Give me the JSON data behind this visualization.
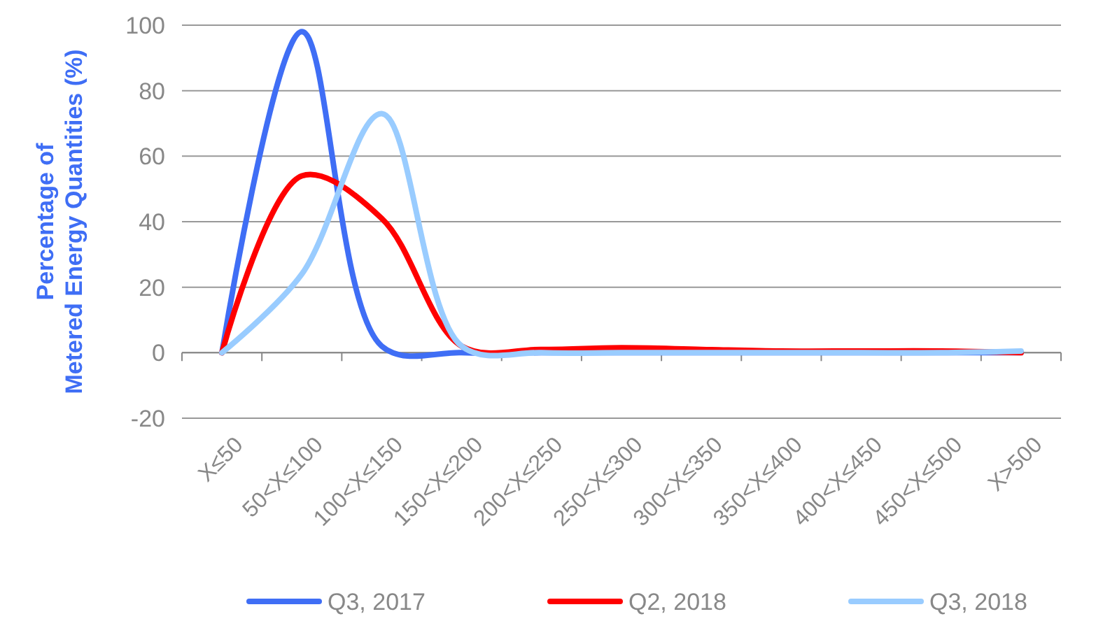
{
  "chart_data": {
    "type": "line",
    "ylabel": "Percentage of Metered Energy Quantities (%)",
    "categories": [
      "X≤50",
      "50<X≤100",
      "100<X≤150",
      "150<X≤200",
      "200<X≤250",
      "250<X≤300",
      "300<X≤350",
      "350<X≤400",
      "400<X≤450",
      "450<X≤500",
      "X>500"
    ],
    "series": [
      {
        "name": "Q3, 2017",
        "color": "#3f6ef5",
        "values": [
          0,
          98,
          2,
          0,
          0,
          0,
          0,
          0,
          0,
          0,
          0
        ]
      },
      {
        "name": "Q2, 2018",
        "color": "#ff0000",
        "values": [
          0,
          54,
          41,
          2,
          1,
          1.5,
          1,
          0.5,
          0.5,
          0.5,
          0
        ]
      },
      {
        "name": "Q3, 2018",
        "color": "#99ccff",
        "values": [
          0,
          24,
          73,
          2,
          0,
          0,
          0,
          0,
          0,
          0,
          0.5
        ]
      }
    ],
    "ylim": [
      -20,
      100
    ],
    "yticks": [
      -20,
      0,
      20,
      40,
      60,
      80,
      100
    ],
    "grid": "y",
    "legend": "bottom",
    "marker": "none",
    "line_style": "solid"
  }
}
